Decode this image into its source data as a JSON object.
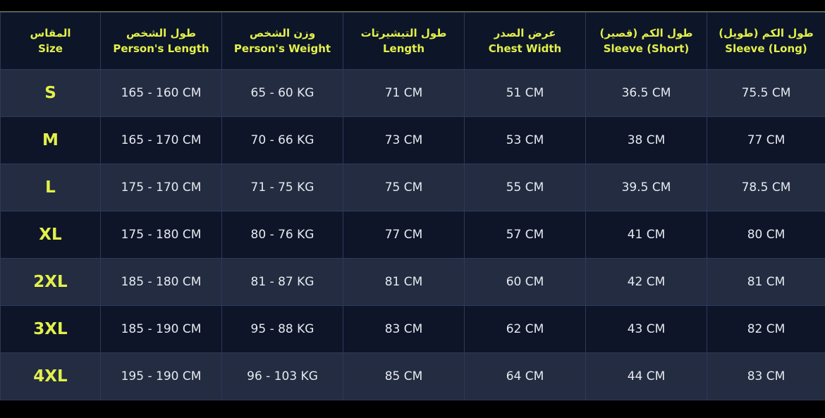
{
  "headers": [
    {
      "ar": "المقاس",
      "en": "Size"
    },
    {
      "ar": "طول الشخص",
      "en": "Person's Length"
    },
    {
      "ar": "وزن الشخص",
      "en": "Person's Weight"
    },
    {
      "ar": "طول التيشيرتات",
      "en": "Length"
    },
    {
      "ar": "عرض الصدر",
      "en": "Chest Width"
    },
    {
      "ar": "طول الكم (قصير)",
      "en": "Sleeve (Short)"
    },
    {
      "ar": "طول الكم (طويل)",
      "en": "Sleeve (Long)"
    }
  ],
  "rows": [
    [
      "S",
      "165 - 160 CM",
      "65 - 60 KG",
      "71 CM",
      "51 CM",
      "36.5 CM",
      "75.5 CM"
    ],
    [
      "M",
      "165 - 170 CM",
      "70 - 66 KG",
      "73 CM",
      "53 CM",
      "38 CM",
      "77 CM"
    ],
    [
      "L",
      "175 - 170 CM",
      "71 - 75 KG",
      "75 CM",
      "55 CM",
      "39.5 CM",
      "78.5 CM"
    ],
    [
      "XL",
      "175 - 180 CM",
      "80 - 76 KG",
      "77 CM",
      "57 CM",
      "41 CM",
      "80 CM"
    ],
    [
      "2XL",
      "185 - 180 CM",
      "81 - 87 KG",
      "81 CM",
      "60 CM",
      "42 CM",
      "81 CM"
    ],
    [
      "3XL",
      "185 - 190 CM",
      "95 - 88 KG",
      "83 CM",
      "62 CM",
      "43 CM",
      "82 CM"
    ],
    [
      "4XL",
      "195 - 190 CM",
      "96 - 103 KG",
      "85 CM",
      "64 CM",
      "44 CM",
      "83 CM"
    ]
  ],
  "colors": {
    "accent": "#e3f04a",
    "header_bg": "#0d1529",
    "row_light": "#232c41",
    "row_dark": "#0e1529",
    "text": "#e6e9ef"
  }
}
